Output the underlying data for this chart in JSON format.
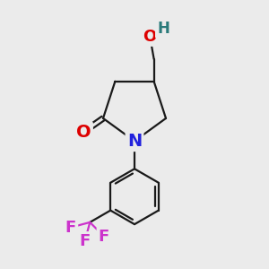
{
  "background_color": "#ebebeb",
  "bond_color": "#1a1a1a",
  "atom_colors": {
    "O": "#dd0000",
    "N": "#2222dd",
    "F": "#cc33cc",
    "H_O": "#2a7a7a",
    "C": "#1a1a1a"
  },
  "font_size_atoms": 14,
  "font_size_small": 11,
  "figsize": [
    3.0,
    3.0
  ],
  "dpi": 100
}
